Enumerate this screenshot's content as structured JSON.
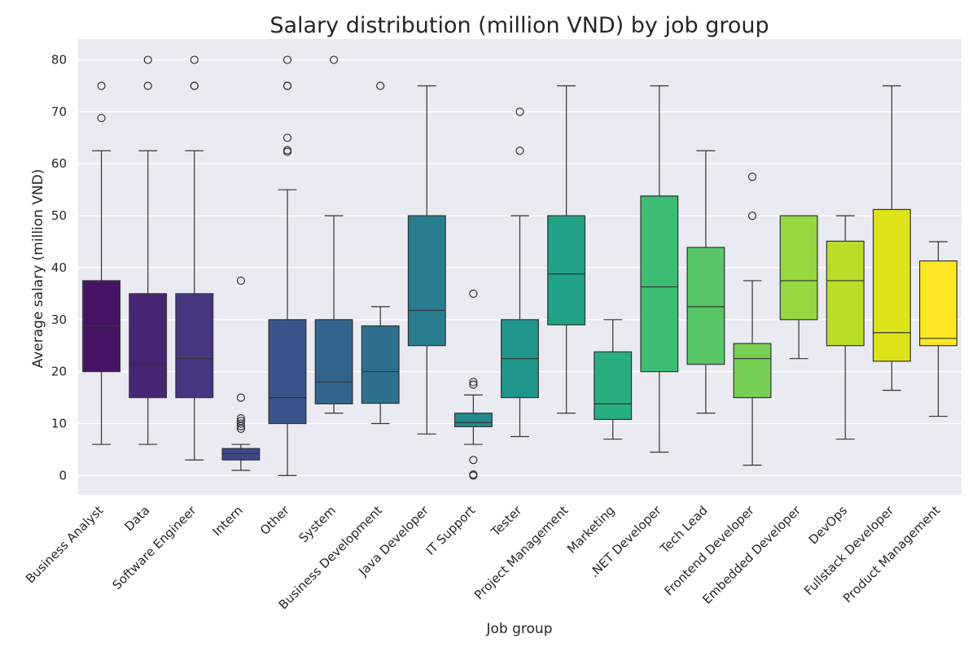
{
  "chart_data": {
    "type": "box",
    "title": "Salary distribution (million VND) by job group",
    "xlabel": "Job group",
    "ylabel": "Average salary (million VND)",
    "ylim": [
      -3.7,
      84
    ],
    "yticks": [
      0,
      10,
      20,
      30,
      40,
      50,
      60,
      70,
      80
    ],
    "grid": true,
    "legend": false,
    "background": "#eaeaf2",
    "categories": [
      {
        "name": "Business Analyst",
        "color": "#471365",
        "q1": 20,
        "median": 28.8,
        "q3": 37.5,
        "whisker_low": 6,
        "whisker_high": 62.5,
        "outliers": [
          68.8,
          75
        ]
      },
      {
        "name": "Data",
        "color": "#482475",
        "q1": 15,
        "median": 21.5,
        "q3": 35,
        "whisker_low": 6,
        "whisker_high": 62.5,
        "outliers": [
          75,
          80
        ]
      },
      {
        "name": "Software Engineer",
        "color": "#453781",
        "q1": 15,
        "median": 22.5,
        "q3": 35,
        "whisker_low": 3,
        "whisker_high": 62.5,
        "outliers": [
          75,
          75,
          80
        ]
      },
      {
        "name": "Intern",
        "color": "#3f4788",
        "q1": 3,
        "median": 4.2,
        "q3": 5.2,
        "whisker_low": 1,
        "whisker_high": 6,
        "outliers": [
          9,
          9.5,
          10,
          10.5,
          11,
          15,
          37.5
        ]
      },
      {
        "name": "Other",
        "color": "#39558c",
        "q1": 10,
        "median": 15,
        "q3": 30,
        "whisker_low": 0,
        "whisker_high": 55,
        "outliers": [
          62.3,
          62.6,
          65,
          75,
          75,
          80
        ]
      },
      {
        "name": "System",
        "color": "#32648e",
        "q1": 13.8,
        "median": 18,
        "q3": 30,
        "whisker_low": 12,
        "whisker_high": 50,
        "outliers": [
          80
        ]
      },
      {
        "name": "Business Development",
        "color": "#2d718e",
        "q1": 13.9,
        "median": 20,
        "q3": 28.8,
        "whisker_low": 10,
        "whisker_high": 32.5,
        "outliers": [
          75
        ]
      },
      {
        "name": "Java Developer",
        "color": "#287d8e",
        "q1": 25,
        "median": 31.8,
        "q3": 50,
        "whisker_low": 8,
        "whisker_high": 75,
        "outliers": []
      },
      {
        "name": "IT Support",
        "color": "#238a8d",
        "q1": 9.4,
        "median": 10.2,
        "q3": 12,
        "whisker_low": 6,
        "whisker_high": 15.5,
        "outliers": [
          0,
          0.2,
          3,
          17.5,
          18,
          35
        ]
      },
      {
        "name": "Tester",
        "color": "#1f968b",
        "q1": 15,
        "median": 22.5,
        "q3": 30,
        "whisker_low": 7.5,
        "whisker_high": 50,
        "outliers": [
          62.5,
          70
        ]
      },
      {
        "name": "Project Management",
        "color": "#20a386",
        "q1": 29,
        "median": 38.8,
        "q3": 50,
        "whisker_low": 12,
        "whisker_high": 75,
        "outliers": []
      },
      {
        "name": "Marketing",
        "color": "#29af7f",
        "q1": 10.8,
        "median": 13.8,
        "q3": 23.8,
        "whisker_low": 7,
        "whisker_high": 30,
        "outliers": []
      },
      {
        "name": ".NET Developer",
        "color": "#3dbc74",
        "q1": 20,
        "median": 36.3,
        "q3": 53.8,
        "whisker_low": 4.5,
        "whisker_high": 75,
        "outliers": []
      },
      {
        "name": "Tech Lead",
        "color": "#56c667",
        "q1": 21.4,
        "median": 32.5,
        "q3": 43.9,
        "whisker_low": 12,
        "whisker_high": 62.5,
        "outliers": []
      },
      {
        "name": "Frontend Developer",
        "color": "#75d054",
        "q1": 15,
        "median": 22.5,
        "q3": 25.4,
        "whisker_low": 2,
        "whisker_high": 37.5,
        "outliers": [
          50,
          57.5
        ]
      },
      {
        "name": "Embedded Developer",
        "color": "#95d840",
        "q1": 30,
        "median": 37.5,
        "q3": 50,
        "whisker_low": 22.5,
        "whisker_high": 50,
        "outliers": []
      },
      {
        "name": "DevOps",
        "color": "#bade28",
        "q1": 25,
        "median": 37.5,
        "q3": 45.1,
        "whisker_low": 7,
        "whisker_high": 50,
        "outliers": []
      },
      {
        "name": "Fullstack Developer",
        "color": "#dde318",
        "q1": 22,
        "median": 27.5,
        "q3": 51.2,
        "whisker_low": 16.4,
        "whisker_high": 75,
        "outliers": []
      },
      {
        "name": "Product Management",
        "color": "#fde725",
        "q1": 25,
        "median": 26.4,
        "q3": 41.3,
        "whisker_low": 11.4,
        "whisker_high": 45,
        "outliers": []
      }
    ]
  }
}
